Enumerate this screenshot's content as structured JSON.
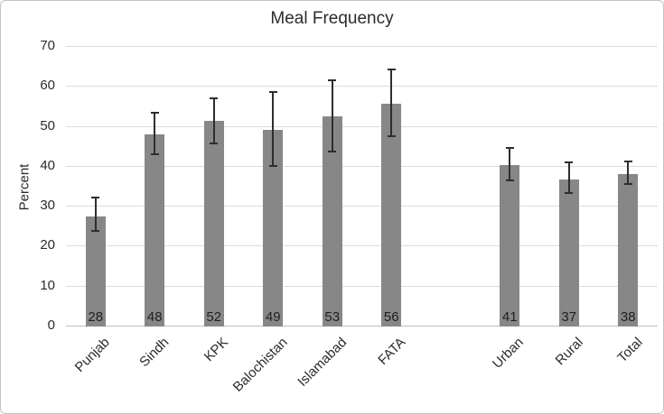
{
  "chart_data": {
    "type": "bar",
    "title": "Meal Frequency",
    "xlabel": "",
    "ylabel": "Percent",
    "ylim": [
      0,
      70
    ],
    "yticks": [
      0,
      10,
      20,
      30,
      40,
      50,
      60,
      70
    ],
    "grid": true,
    "legend": false,
    "categories": [
      "Punjab",
      "Sindh",
      "KPK",
      "Balochistan",
      "Islamabad",
      "FATA",
      "Urban",
      "Rural",
      "Total"
    ],
    "values": [
      28,
      48,
      52,
      49,
      53,
      56,
      41,
      37,
      38
    ],
    "data_labels": [
      "28",
      "48",
      "52",
      "49",
      "53",
      "56",
      "41",
      "37",
      "38"
    ],
    "bar_heights_drawn": [
      27.5,
      48.1,
      51.5,
      49.2,
      52.7,
      55.7,
      40.4,
      36.8,
      38.2
    ],
    "error_low": [
      24.0,
      43.2,
      45.8,
      40.2,
      43.7,
      47.6,
      36.6,
      33.4,
      35.7
    ],
    "error_high": [
      32.2,
      53.6,
      57.1,
      58.8,
      61.6,
      64.3,
      44.7,
      41.1,
      41.3
    ],
    "slots": [
      0,
      1,
      2,
      3,
      4,
      5,
      7,
      8,
      9
    ],
    "slot_count": 10,
    "group_gap_after_category": "FATA",
    "colors": {
      "bar_fill": "#878787",
      "error_bar": "#2e2e2e",
      "gridline": "#dcdcdc",
      "axis_line": "#bdbdbd",
      "text": "#2b2b2b",
      "frame_border": "#c3c3c3",
      "background": "#ffffff"
    }
  }
}
